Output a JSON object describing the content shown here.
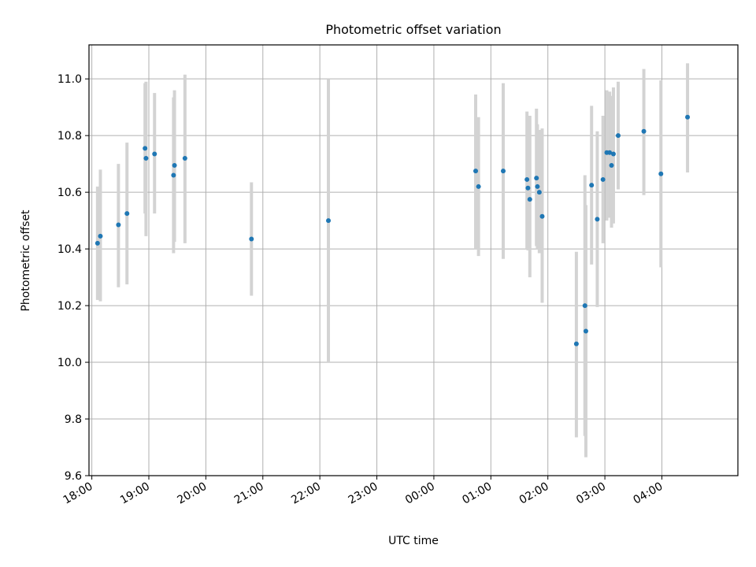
{
  "chart_data": {
    "type": "scatter",
    "title": "Photometric offset variation",
    "xlabel": "UTC time",
    "ylabel": "Photometric offset",
    "grid": true,
    "error_bar_color": "#d3d3d3",
    "point_color": "#1f77b4",
    "x_ticks": [
      "18:00",
      "19:00",
      "20:00",
      "21:00",
      "22:00",
      "23:00",
      "00:00",
      "01:00",
      "02:00",
      "03:00",
      "04:00"
    ],
    "y_ticks": [
      "9.6",
      "9.8",
      "10.0",
      "10.2",
      "10.4",
      "10.6",
      "10.8",
      "11.0"
    ],
    "xlim": [
      "17:57",
      "05:20"
    ],
    "ylim": [
      9.6,
      11.12
    ],
    "points": [
      {
        "x": "18:06",
        "y": 10.42,
        "lo": 10.22,
        "hi": 10.62
      },
      {
        "x": "18:09",
        "y": 10.445,
        "lo": 10.215,
        "hi": 10.68
      },
      {
        "x": "18:28",
        "y": 10.485,
        "lo": 10.265,
        "hi": 10.7
      },
      {
        "x": "18:37",
        "y": 10.525,
        "lo": 10.275,
        "hi": 10.775
      },
      {
        "x": "18:56",
        "y": 10.755,
        "lo": 10.525,
        "hi": 10.985
      },
      {
        "x": "18:57",
        "y": 10.72,
        "lo": 10.445,
        "hi": 10.99
      },
      {
        "x": "19:06",
        "y": 10.735,
        "lo": 10.525,
        "hi": 10.95
      },
      {
        "x": "19:26",
        "y": 10.66,
        "lo": 10.385,
        "hi": 10.935
      },
      {
        "x": "19:27",
        "y": 10.695,
        "lo": 10.425,
        "hi": 10.96
      },
      {
        "x": "19:38",
        "y": 10.72,
        "lo": 10.42,
        "hi": 11.015
      },
      {
        "x": "20:48",
        "y": 10.435,
        "lo": 10.235,
        "hi": 10.635
      },
      {
        "x": "22:09",
        "y": 10.5,
        "lo": 10.0,
        "hi": 11.0
      },
      {
        "x": "00:44",
        "y": 10.675,
        "lo": 10.4,
        "hi": 10.945
      },
      {
        "x": "00:47",
        "y": 10.62,
        "lo": 10.375,
        "hi": 10.865
      },
      {
        "x": "01:13",
        "y": 10.675,
        "lo": 10.365,
        "hi": 10.985
      },
      {
        "x": "01:38",
        "y": 10.645,
        "lo": 10.4,
        "hi": 10.885
      },
      {
        "x": "01:39",
        "y": 10.615,
        "lo": 10.395,
        "hi": 10.835
      },
      {
        "x": "01:41",
        "y": 10.575,
        "lo": 10.3,
        "hi": 10.87
      },
      {
        "x": "01:48",
        "y": 10.65,
        "lo": 10.41,
        "hi": 10.895
      },
      {
        "x": "01:49",
        "y": 10.62,
        "lo": 10.4,
        "hi": 10.84
      },
      {
        "x": "01:51",
        "y": 10.6,
        "lo": 10.385,
        "hi": 10.82
      },
      {
        "x": "01:54",
        "y": 10.515,
        "lo": 10.21,
        "hi": 10.825
      },
      {
        "x": "02:30",
        "y": 10.065,
        "lo": 9.735,
        "hi": 10.39
      },
      {
        "x": "02:39",
        "y": 10.2,
        "lo": 9.74,
        "hi": 10.66
      },
      {
        "x": "02:40",
        "y": 10.11,
        "lo": 9.665,
        "hi": 10.555
      },
      {
        "x": "02:46",
        "y": 10.625,
        "lo": 10.345,
        "hi": 10.905
      },
      {
        "x": "02:52",
        "y": 10.505,
        "lo": 10.195,
        "hi": 10.815
      },
      {
        "x": "02:58",
        "y": 10.645,
        "lo": 10.42,
        "hi": 10.87
      },
      {
        "x": "03:02",
        "y": 10.74,
        "lo": 10.5,
        "hi": 10.96
      },
      {
        "x": "03:05",
        "y": 10.74,
        "lo": 10.51,
        "hi": 10.955
      },
      {
        "x": "03:07",
        "y": 10.695,
        "lo": 10.475,
        "hi": 10.94
      },
      {
        "x": "03:09",
        "y": 10.735,
        "lo": 10.49,
        "hi": 10.97
      },
      {
        "x": "03:14",
        "y": 10.8,
        "lo": 10.61,
        "hi": 10.99
      },
      {
        "x": "03:41",
        "y": 10.815,
        "lo": 10.59,
        "hi": 11.035
      },
      {
        "x": "03:59",
        "y": 10.665,
        "lo": 10.335,
        "hi": 10.995
      },
      {
        "x": "04:27",
        "y": 10.865,
        "lo": 10.67,
        "hi": 11.055
      }
    ]
  }
}
